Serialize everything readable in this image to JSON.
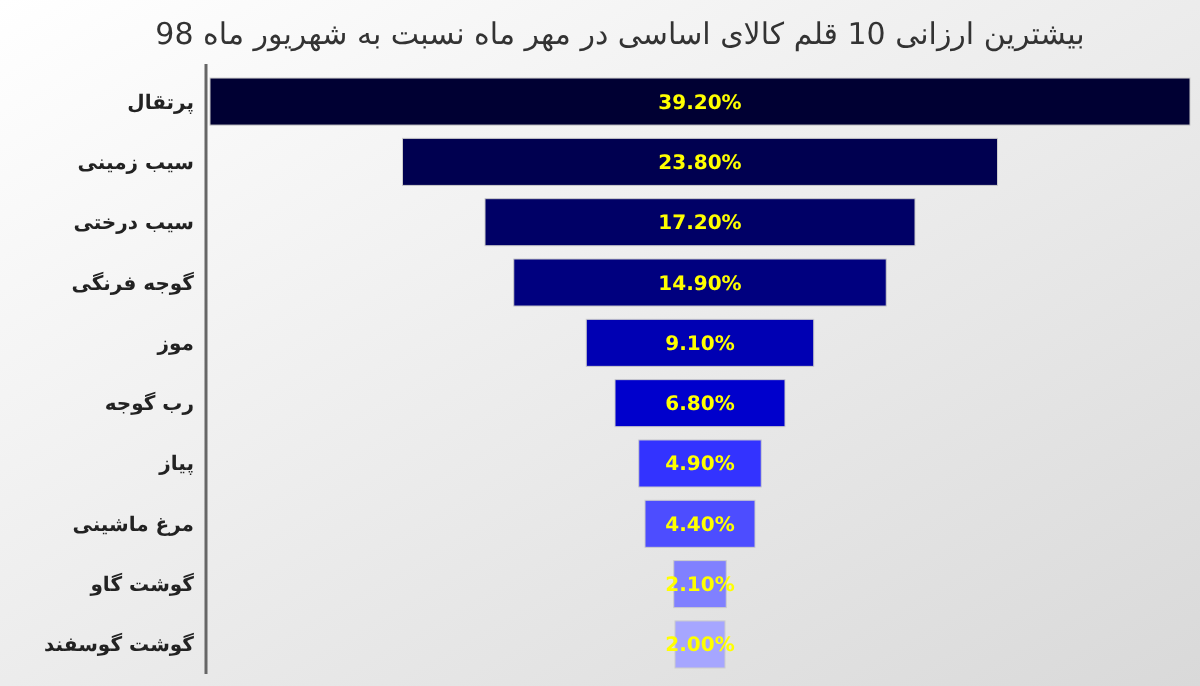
{
  "chart_data": {
    "type": "other",
    "title": "بیشترین ارزانی 10 قلم کالای اساسی در مهر ماه نسبت به شهریور ماه 98",
    "categories": [
      "پرتقال",
      "سیب زمینی",
      "سیب درختی",
      "گوجه فرنگی",
      "موز",
      "رب گوجه",
      "پیاز",
      "مرغ ماشینی",
      "گوشت گاو",
      "گوشت گوسفند"
    ],
    "values": [
      39.2,
      23.8,
      17.2,
      14.9,
      9.1,
      6.8,
      4.9,
      4.4,
      2.1,
      2.0
    ],
    "value_labels": [
      "39.20%",
      "23.80%",
      "17.20%",
      "14.90%",
      "9.10%",
      "6.80%",
      "4.90%",
      "4.40%",
      "2.10%",
      "2.00%"
    ],
    "colors": [
      "#000033",
      "#000050",
      "#000066",
      "#00007f",
      "#0000b3",
      "#0000cc",
      "#3333ff",
      "#4d4dff",
      "#8080ff",
      "#a6a6ff"
    ]
  }
}
